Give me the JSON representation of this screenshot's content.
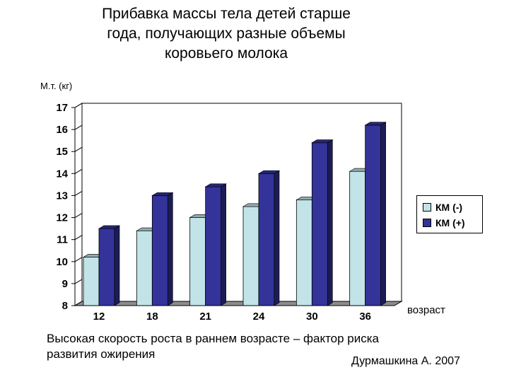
{
  "title_lines": [
    "Прибавка массы тела детей старше",
    "года, получающих разные объемы",
    "коровьего молока"
  ],
  "caption_lines": [
    "Высокая скорость роста в раннем возрасте – фактор риска",
    "развития ожирения"
  ],
  "author": "Дурмашкина А. 2007",
  "colors": {
    "series1": "#c2e4e8",
    "series2": "#33339a"
  },
  "chart_data": {
    "type": "bar",
    "title": "",
    "xlabel": "возраст",
    "ylabel": "М.т. (кг)",
    "categories": [
      "12",
      "18",
      "21",
      "24",
      "30",
      "36"
    ],
    "series": [
      {
        "name": "КМ (-)",
        "values": [
          10.2,
          11.4,
          12.0,
          12.5,
          12.8,
          14.1
        ]
      },
      {
        "name": "КМ (+)",
        "values": [
          11.5,
          13.0,
          13.4,
          14.0,
          15.4,
          16.2
        ]
      }
    ],
    "ylim": [
      8,
      17
    ],
    "yticks": [
      "8",
      "9",
      "10",
      "11",
      "12",
      "13",
      "14",
      "15",
      "16",
      "17"
    ],
    "grid": false,
    "legend": "right"
  }
}
